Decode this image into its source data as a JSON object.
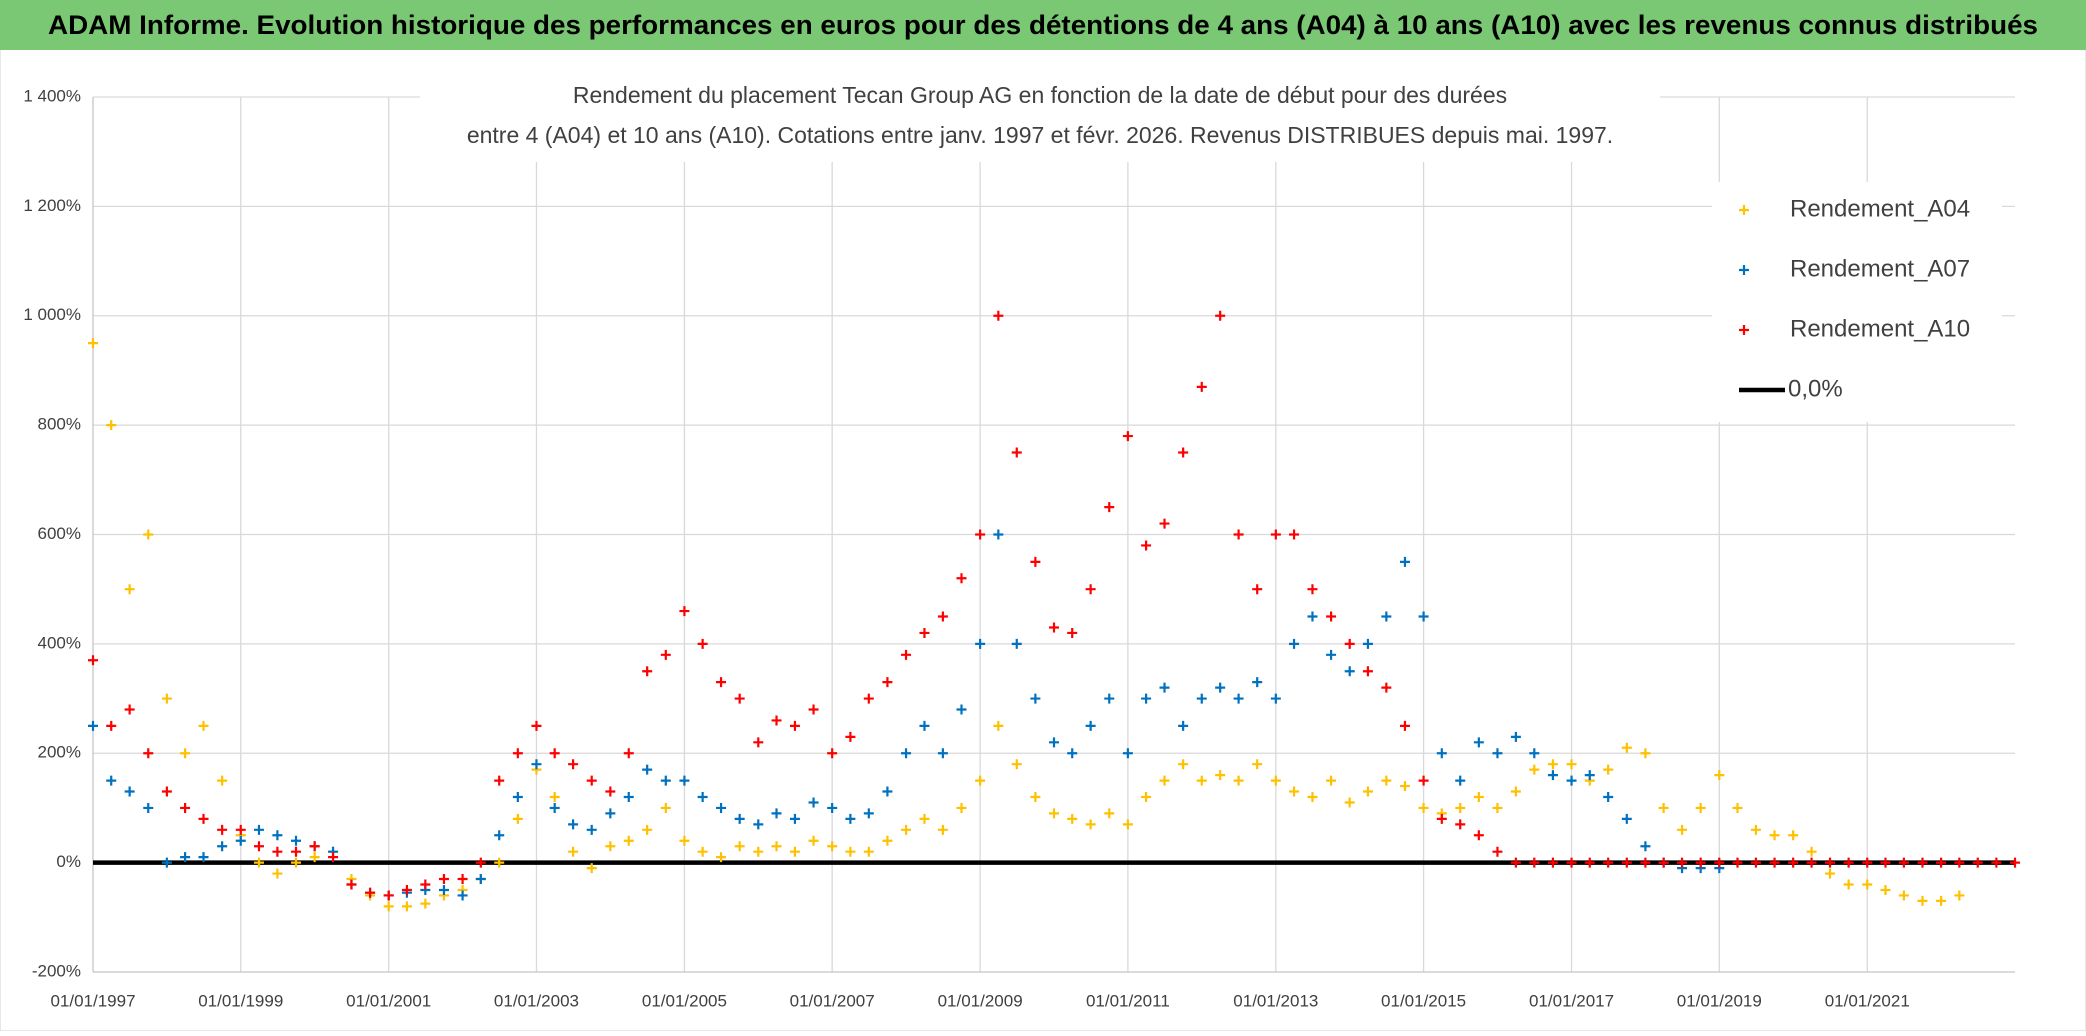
{
  "header": {
    "title": "ADAM Informe. Evolution historique des performances en euros pour des détentions de 4 ans (A04) à 10 ans (A10) avec les revenus connus distribués"
  },
  "chart_data": {
    "type": "scatter",
    "title": "Rendement du placement Tecan Group AG en fonction de la date de début pour des durées",
    "subtitle": "entre 4 (A04) et 10 ans (A10). Cotations entre janv. 1997 et févr. 2026. Revenus DISTRIBUES depuis mai. 1997.",
    "xlim": [
      "01/01/1997",
      "01/01/2023"
    ],
    "xticks": [
      "01/01/1997",
      "01/01/1999",
      "01/01/2001",
      "01/01/2003",
      "01/01/2005",
      "01/01/2007",
      "01/01/2009",
      "01/01/2011",
      "01/01/2013",
      "01/01/2015",
      "01/01/2017",
      "01/01/2019",
      "01/01/2021"
    ],
    "ylim": [
      -200,
      1400
    ],
    "yticks": [
      {
        "value": -200,
        "label": "-200%"
      },
      {
        "value": 0,
        "label": "0%"
      },
      {
        "value": 200,
        "label": "200%"
      },
      {
        "value": 400,
        "label": "400%"
      },
      {
        "value": 600,
        "label": "600%"
      },
      {
        "value": 800,
        "label": "800%"
      },
      {
        "value": 1000,
        "label": "1 000%"
      },
      {
        "value": 1200,
        "label": "1 200%"
      },
      {
        "value": 1400,
        "label": "1 400%"
      }
    ],
    "grid": true,
    "legend": "right",
    "x": [
      "01/01/1997",
      "01/04/1997",
      "01/07/1997",
      "01/10/1997",
      "01/01/1998",
      "01/04/1998",
      "01/07/1998",
      "01/10/1998",
      "01/01/1999",
      "01/04/1999",
      "01/07/1999",
      "01/10/1999",
      "01/01/2000",
      "01/04/2000",
      "01/07/2000",
      "01/10/2000",
      "01/01/2001",
      "01/04/2001",
      "01/07/2001",
      "01/10/2001",
      "01/01/2002",
      "01/04/2002",
      "01/07/2002",
      "01/10/2002",
      "01/01/2003",
      "01/04/2003",
      "01/07/2003",
      "01/10/2003",
      "01/01/2004",
      "01/04/2004",
      "01/07/2004",
      "01/10/2004",
      "01/01/2005",
      "01/04/2005",
      "01/07/2005",
      "01/10/2005",
      "01/01/2006",
      "01/04/2006",
      "01/07/2006",
      "01/10/2006",
      "01/01/2007",
      "01/04/2007",
      "01/07/2007",
      "01/10/2007",
      "01/01/2008",
      "01/04/2008",
      "01/07/2008",
      "01/10/2008",
      "01/01/2009",
      "01/04/2009",
      "01/07/2009",
      "01/10/2009",
      "01/01/2010",
      "01/04/2010",
      "01/07/2010",
      "01/10/2010",
      "01/01/2011",
      "01/04/2011",
      "01/07/2011",
      "01/10/2011",
      "01/01/2012",
      "01/04/2012",
      "01/07/2012",
      "01/10/2012",
      "01/01/2013",
      "01/04/2013",
      "01/07/2013",
      "01/10/2013",
      "01/01/2014",
      "01/04/2014",
      "01/07/2014",
      "01/10/2014",
      "01/01/2015",
      "01/04/2015",
      "01/07/2015",
      "01/10/2015",
      "01/01/2016",
      "01/04/2016",
      "01/07/2016",
      "01/10/2016",
      "01/01/2017",
      "01/04/2017",
      "01/07/2017",
      "01/10/2017",
      "01/01/2018",
      "01/04/2018",
      "01/07/2018",
      "01/10/2018",
      "01/01/2019",
      "01/04/2019",
      "01/07/2019",
      "01/10/2019",
      "01/01/2020",
      "01/04/2020",
      "01/07/2020",
      "01/10/2020",
      "01/01/2021",
      "01/04/2021",
      "01/07/2021",
      "01/10/2021",
      "01/01/2022",
      "01/04/2022",
      "01/07/2022",
      "01/10/2022",
      "01/01/2023"
    ],
    "series": [
      {
        "name": "Rendement_A04",
        "color": "#ffc000",
        "values": [
          950,
          800,
          500,
          600,
          300,
          200,
          250,
          150,
          50,
          0,
          -20,
          0,
          10,
          20,
          -30,
          -60,
          -80,
          -80,
          -75,
          -60,
          -50,
          -30,
          0,
          80,
          170,
          120,
          20,
          -10,
          30,
          40,
          60,
          100,
          40,
          20,
          10,
          30,
          20,
          30,
          20,
          40,
          30,
          20,
          20,
          40,
          60,
          80,
          60,
          100,
          150,
          250,
          180,
          120,
          90,
          80,
          70,
          90,
          70,
          120,
          150,
          180,
          150,
          160,
          150,
          180,
          150,
          130,
          120,
          150,
          110,
          130,
          150,
          140,
          100,
          90,
          100,
          120,
          100,
          130,
          170,
          180,
          180,
          150,
          170,
          210,
          200,
          100,
          60,
          100,
          160,
          100,
          60,
          50,
          50,
          20,
          -20,
          -40,
          -40,
          -50,
          -60,
          -70,
          -70,
          -60,
          null,
          null,
          null
        ]
      },
      {
        "name": "Rendement_A07",
        "color": "#0070c0",
        "values": [
          250,
          150,
          130,
          100,
          0,
          10,
          10,
          30,
          40,
          60,
          50,
          40,
          30,
          20,
          -40,
          -55,
          -60,
          -55,
          -50,
          -50,
          -60,
          -30,
          50,
          120,
          180,
          100,
          70,
          60,
          90,
          120,
          170,
          150,
          150,
          120,
          100,
          80,
          70,
          90,
          80,
          110,
          100,
          80,
          90,
          130,
          200,
          250,
          200,
          280,
          400,
          600,
          400,
          300,
          220,
          200,
          250,
          300,
          200,
          300,
          320,
          250,
          300,
          320,
          300,
          330,
          300,
          400,
          450,
          380,
          350,
          400,
          450,
          550,
          450,
          200,
          150,
          220,
          200,
          230,
          200,
          160,
          150,
          160,
          120,
          80,
          30,
          0,
          -10,
          -10,
          -10,
          null,
          null,
          null,
          null,
          null,
          null,
          null,
          null,
          null,
          null,
          null,
          null,
          null,
          null,
          null,
          null
        ]
      },
      {
        "name": "Rendement_A10",
        "color": "#ff0000",
        "values": [
          370,
          250,
          280,
          200,
          130,
          100,
          80,
          60,
          60,
          30,
          20,
          20,
          30,
          10,
          -40,
          -55,
          -60,
          -50,
          -40,
          -30,
          -30,
          0,
          150,
          200,
          250,
          200,
          180,
          150,
          130,
          200,
          350,
          380,
          460,
          400,
          330,
          300,
          220,
          260,
          250,
          280,
          200,
          230,
          300,
          330,
          380,
          420,
          450,
          520,
          600,
          1000,
          750,
          550,
          430,
          420,
          500,
          650,
          780,
          580,
          620,
          750,
          870,
          1000,
          600,
          500,
          600,
          600,
          500,
          450,
          400,
          350,
          320,
          250,
          150,
          80,
          70,
          50,
          20,
          0,
          0,
          0,
          0,
          0,
          0,
          0,
          0,
          0,
          0,
          0,
          0,
          0,
          0,
          0,
          0,
          0,
          0,
          0,
          0,
          0,
          0,
          0,
          0,
          0,
          0,
          0,
          0
        ]
      }
    ],
    "reference_line": {
      "name": "0,0%",
      "value": 0,
      "color": "#000000"
    }
  }
}
